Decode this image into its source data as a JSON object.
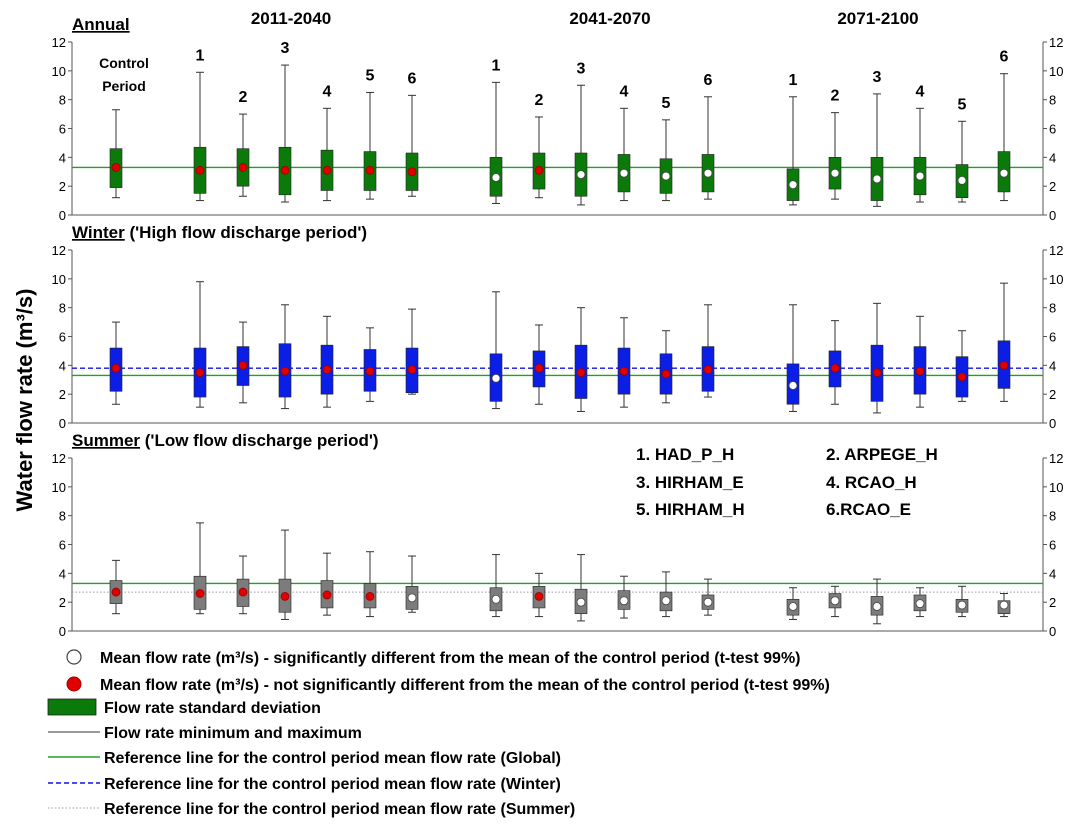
{
  "chart_data": {
    "type": "box",
    "ylabel": "Water flow rate (m³/s)",
    "y_ticks": [
      "0",
      "2",
      "4",
      "6",
      "8",
      "10",
      "12"
    ],
    "ylim": [
      0,
      12
    ],
    "period_headers": [
      "2011-2040",
      "2041-2070",
      "2071-2100"
    ],
    "control_label_line1": "Control",
    "control_label_line2": "Period",
    "panels": [
      {
        "season": "Annual",
        "subtitle": "",
        "box_color": "#0b7a0b",
        "show_headers": true,
        "model_numbers": [
          "1",
          "2",
          "3",
          "4",
          "5",
          "6",
          "1",
          "2",
          "3",
          "4",
          "5",
          "6",
          "1",
          "2",
          "3",
          "4",
          "5",
          "6"
        ],
        "reference_lines": [
          {
            "value": 3.3,
            "style": "green-solid"
          }
        ],
        "boxes": [
          {
            "min": 1.2,
            "max": 7.3,
            "low": 1.9,
            "high": 4.6,
            "mean": 3.3,
            "significant": false
          },
          {
            "min": 1.0,
            "max": 9.9,
            "low": 1.5,
            "high": 4.7,
            "mean": 3.1,
            "significant": false
          },
          {
            "min": 1.3,
            "max": 7.0,
            "low": 2.0,
            "high": 4.6,
            "mean": 3.3,
            "significant": false
          },
          {
            "min": 0.9,
            "max": 10.4,
            "low": 1.4,
            "high": 4.7,
            "mean": 3.1,
            "significant": false
          },
          {
            "min": 1.0,
            "max": 7.4,
            "low": 1.7,
            "high": 4.5,
            "mean": 3.1,
            "significant": false
          },
          {
            "min": 1.1,
            "max": 8.5,
            "low": 1.7,
            "high": 4.4,
            "mean": 3.1,
            "significant": false
          },
          {
            "min": 1.3,
            "max": 8.3,
            "low": 1.7,
            "high": 4.3,
            "mean": 3.0,
            "significant": false
          },
          {
            "min": 0.8,
            "max": 9.2,
            "low": 1.3,
            "high": 4.0,
            "mean": 2.6,
            "significant": true
          },
          {
            "min": 1.2,
            "max": 6.8,
            "low": 1.8,
            "high": 4.3,
            "mean": 3.1,
            "significant": false
          },
          {
            "min": 0.7,
            "max": 9.0,
            "low": 1.3,
            "high": 4.3,
            "mean": 2.8,
            "significant": true
          },
          {
            "min": 1.0,
            "max": 7.4,
            "low": 1.6,
            "high": 4.2,
            "mean": 2.9,
            "significant": true
          },
          {
            "min": 1.0,
            "max": 6.6,
            "low": 1.5,
            "high": 3.9,
            "mean": 2.7,
            "significant": true
          },
          {
            "min": 1.1,
            "max": 8.2,
            "low": 1.6,
            "high": 4.2,
            "mean": 2.9,
            "significant": true
          },
          {
            "min": 0.7,
            "max": 8.2,
            "low": 1.0,
            "high": 3.2,
            "mean": 2.1,
            "significant": true
          },
          {
            "min": 1.1,
            "max": 7.1,
            "low": 1.8,
            "high": 4.0,
            "mean": 2.9,
            "significant": true
          },
          {
            "min": 0.6,
            "max": 8.4,
            "low": 1.0,
            "high": 4.0,
            "mean": 2.5,
            "significant": true
          },
          {
            "min": 0.9,
            "max": 7.4,
            "low": 1.4,
            "high": 4.0,
            "mean": 2.7,
            "significant": true
          },
          {
            "min": 0.9,
            "max": 6.5,
            "low": 1.2,
            "high": 3.5,
            "mean": 2.4,
            "significant": true
          },
          {
            "min": 1.0,
            "max": 9.8,
            "low": 1.6,
            "high": 4.4,
            "mean": 2.9,
            "significant": true
          }
        ]
      },
      {
        "season": "Winter",
        "subtitle": "('High flow discharge period')",
        "box_color": "#0a1ee6",
        "show_headers": false,
        "model_numbers": [],
        "reference_lines": [
          {
            "value": 3.3,
            "style": "green-solid"
          },
          {
            "value": 3.8,
            "style": "blue-dashed"
          }
        ],
        "boxes": [
          {
            "min": 1.3,
            "max": 7.0,
            "low": 2.2,
            "high": 5.2,
            "mean": 3.8,
            "significant": false
          },
          {
            "min": 1.1,
            "max": 9.8,
            "low": 1.8,
            "high": 5.2,
            "mean": 3.5,
            "significant": false
          },
          {
            "min": 1.4,
            "max": 7.0,
            "low": 2.6,
            "high": 5.3,
            "mean": 4.0,
            "significant": false
          },
          {
            "min": 1.0,
            "max": 8.2,
            "low": 1.8,
            "high": 5.5,
            "mean": 3.6,
            "significant": false
          },
          {
            "min": 1.1,
            "max": 7.4,
            "low": 2.0,
            "high": 5.4,
            "mean": 3.7,
            "significant": false
          },
          {
            "min": 1.5,
            "max": 6.6,
            "low": 2.2,
            "high": 5.1,
            "mean": 3.6,
            "significant": false
          },
          {
            "min": 2.0,
            "max": 7.9,
            "low": 2.1,
            "high": 5.2,
            "mean": 3.7,
            "significant": false
          },
          {
            "min": 1.0,
            "max": 9.1,
            "low": 1.5,
            "high": 4.8,
            "mean": 3.1,
            "significant": true
          },
          {
            "min": 1.3,
            "max": 6.8,
            "low": 2.5,
            "high": 5.0,
            "mean": 3.8,
            "significant": false
          },
          {
            "min": 0.8,
            "max": 8.0,
            "low": 1.7,
            "high": 5.4,
            "mean": 3.5,
            "significant": false
          },
          {
            "min": 1.1,
            "max": 7.3,
            "low": 2.0,
            "high": 5.2,
            "mean": 3.6,
            "significant": false
          },
          {
            "min": 1.4,
            "max": 6.4,
            "low": 2.0,
            "high": 4.8,
            "mean": 3.4,
            "significant": false
          },
          {
            "min": 1.8,
            "max": 8.2,
            "low": 2.2,
            "high": 5.3,
            "mean": 3.7,
            "significant": false
          },
          {
            "min": 0.8,
            "max": 8.2,
            "low": 1.3,
            "high": 4.1,
            "mean": 2.6,
            "significant": true
          },
          {
            "min": 1.3,
            "max": 7.1,
            "low": 2.5,
            "high": 5.0,
            "mean": 3.8,
            "significant": false
          },
          {
            "min": 0.7,
            "max": 8.3,
            "low": 1.5,
            "high": 5.4,
            "mean": 3.5,
            "significant": false
          },
          {
            "min": 1.1,
            "max": 7.4,
            "low": 2.0,
            "high": 5.3,
            "mean": 3.6,
            "significant": false
          },
          {
            "min": 1.5,
            "max": 6.4,
            "low": 1.8,
            "high": 4.6,
            "mean": 3.2,
            "significant": false
          },
          {
            "min": 1.5,
            "max": 9.7,
            "low": 2.4,
            "high": 5.7,
            "mean": 4.0,
            "significant": false
          }
        ]
      },
      {
        "season": "Summer",
        "subtitle": "('Low flow discharge period')",
        "box_color": "#7c7c7c",
        "show_headers": false,
        "model_numbers": [],
        "reference_lines": [
          {
            "value": 3.3,
            "style": "green-solid"
          },
          {
            "value": 2.7,
            "style": "grey-dotted"
          }
        ],
        "boxes": [
          {
            "min": 1.2,
            "max": 4.9,
            "low": 1.9,
            "high": 3.5,
            "mean": 2.7,
            "significant": false
          },
          {
            "min": 1.2,
            "max": 7.5,
            "low": 1.5,
            "high": 3.8,
            "mean": 2.6,
            "significant": false
          },
          {
            "min": 1.2,
            "max": 5.2,
            "low": 1.7,
            "high": 3.6,
            "mean": 2.7,
            "significant": false
          },
          {
            "min": 0.8,
            "max": 7.0,
            "low": 1.3,
            "high": 3.6,
            "mean": 2.4,
            "significant": false
          },
          {
            "min": 1.1,
            "max": 5.4,
            "low": 1.6,
            "high": 3.5,
            "mean": 2.5,
            "significant": false
          },
          {
            "min": 1.0,
            "max": 5.5,
            "low": 1.6,
            "high": 3.3,
            "mean": 2.4,
            "significant": false
          },
          {
            "min": 1.3,
            "max": 5.2,
            "low": 1.5,
            "high": 3.1,
            "mean": 2.3,
            "significant": true
          },
          {
            "min": 1.0,
            "max": 5.3,
            "low": 1.4,
            "high": 3.0,
            "mean": 2.2,
            "significant": true
          },
          {
            "min": 1.0,
            "max": 4.0,
            "low": 1.6,
            "high": 3.1,
            "mean": 2.4,
            "significant": false
          },
          {
            "min": 0.7,
            "max": 5.3,
            "low": 1.2,
            "high": 2.9,
            "mean": 2.0,
            "significant": true
          },
          {
            "min": 0.9,
            "max": 3.8,
            "low": 1.5,
            "high": 2.8,
            "mean": 2.1,
            "significant": true
          },
          {
            "min": 1.0,
            "max": 4.1,
            "low": 1.4,
            "high": 2.7,
            "mean": 2.1,
            "significant": true
          },
          {
            "min": 1.1,
            "max": 3.6,
            "low": 1.5,
            "high": 2.5,
            "mean": 2.0,
            "significant": true
          },
          {
            "min": 0.8,
            "max": 3.0,
            "low": 1.1,
            "high": 2.2,
            "mean": 1.7,
            "significant": true
          },
          {
            "min": 1.0,
            "max": 3.1,
            "low": 1.6,
            "high": 2.6,
            "mean": 2.1,
            "significant": true
          },
          {
            "min": 0.5,
            "max": 3.6,
            "low": 1.1,
            "high": 2.4,
            "mean": 1.7,
            "significant": true
          },
          {
            "min": 1.0,
            "max": 3.0,
            "low": 1.4,
            "high": 2.5,
            "mean": 1.9,
            "significant": true
          },
          {
            "min": 1.0,
            "max": 3.1,
            "low": 1.3,
            "high": 2.2,
            "mean": 1.8,
            "significant": true
          },
          {
            "min": 1.0,
            "max": 2.6,
            "low": 1.2,
            "high": 2.1,
            "mean": 1.8,
            "significant": true
          }
        ]
      }
    ],
    "models_key": [
      "1. HAD_P_H",
      "2. ARPEGE_H",
      "3. HIRHAM_E",
      "4. RCAO_H",
      "5. HIRHAM_H",
      "6.RCAO_E"
    ],
    "legend": [
      {
        "symbol": "white-circle",
        "label": "Mean flow rate (m³/s) - significantly different from the mean of the control period (t-test 99%)"
      },
      {
        "symbol": "red-circle",
        "label": "Mean flow rate (m³/s) - not significantly different from the mean of the control period (t-test 99%)"
      },
      {
        "symbol": "green-box",
        "label": "Flow rate standard deviation"
      },
      {
        "symbol": "black-line",
        "label": "Flow rate minimum and maximum"
      },
      {
        "symbol": "green-line",
        "label": "Reference line for the control period mean flow rate (Global)"
      },
      {
        "symbol": "blue-dashed-line",
        "label": "Reference line for the control period mean flow rate (Winter)"
      },
      {
        "symbol": "grey-dotted-line",
        "label": "Reference line for the control period mean flow rate (Summer)"
      }
    ],
    "colors": {
      "green_line": "#22a022",
      "green_box": "#0b7a0b",
      "blue_box": "#0a1ee6",
      "blue_line": "#1010ee",
      "grey_box": "#7c7c7c",
      "grey_line": "#9a9a9a",
      "mean_red": "#e00000",
      "axis": "#555555"
    }
  }
}
